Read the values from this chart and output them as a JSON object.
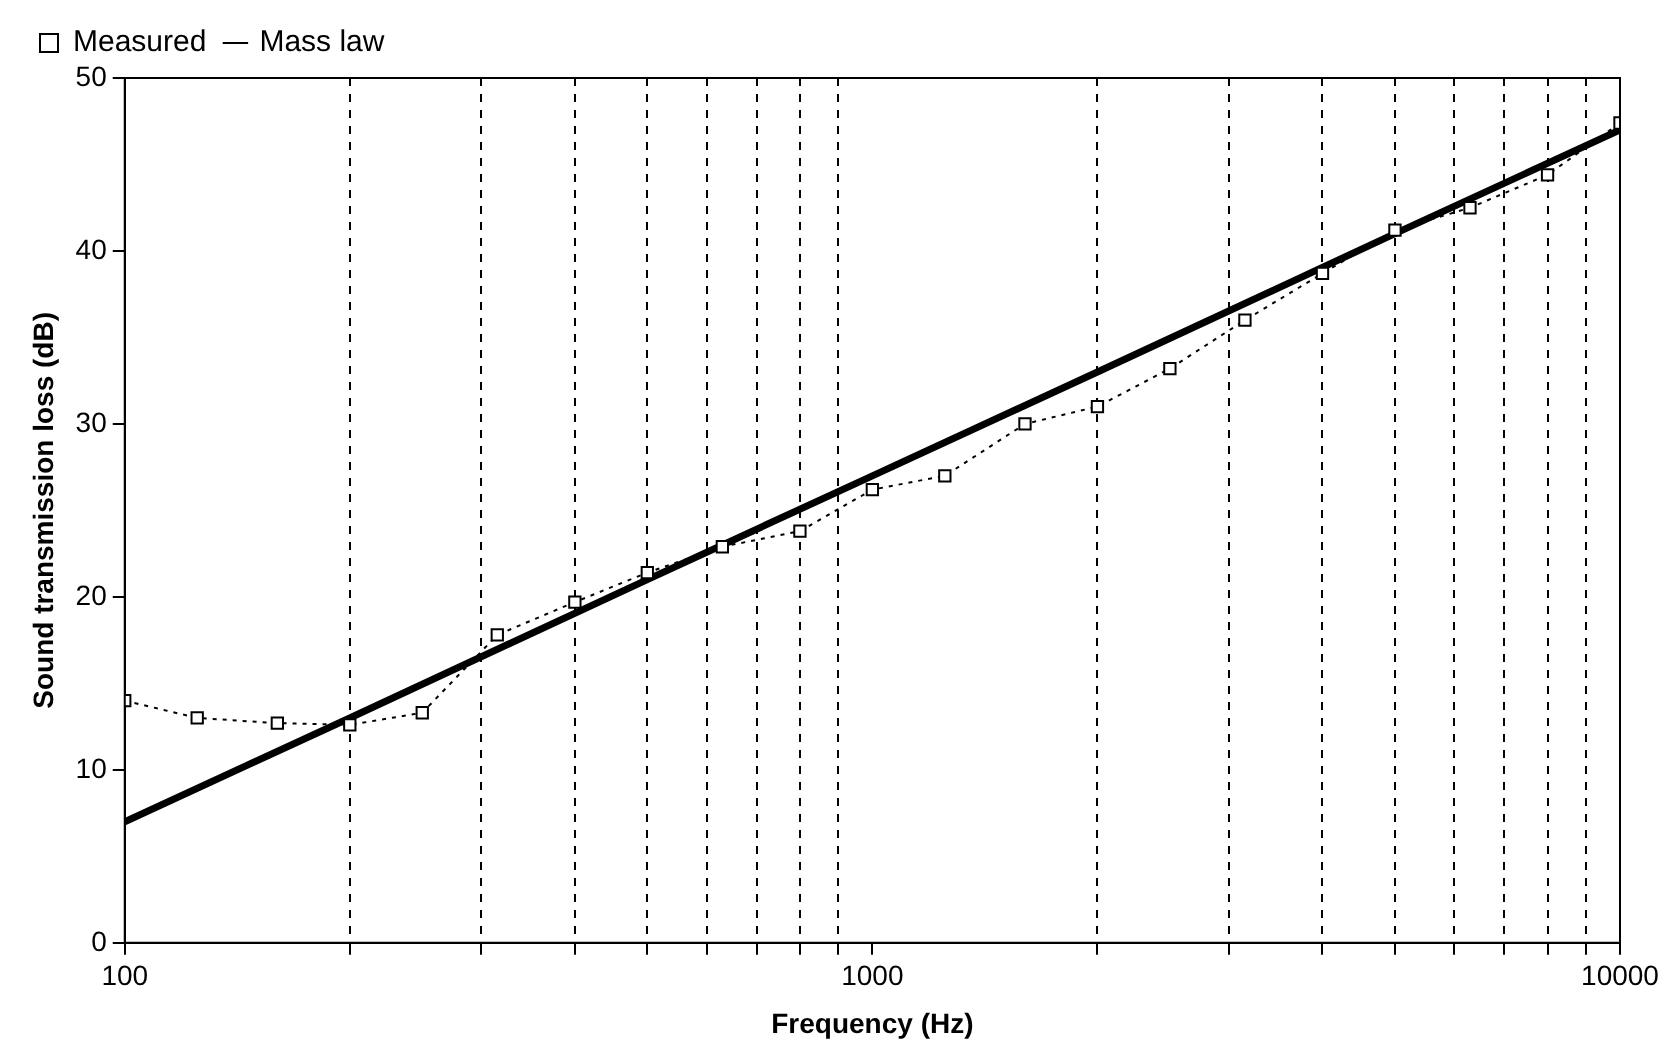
{
  "chart_data": {
    "type": "line",
    "xlabel": "Frequency (Hz)",
    "ylabel": "Sound transmission loss (dB)",
    "log": "x",
    "grid": "x",
    "legend": "top left",
    "xlim": [
      100,
      10000
    ],
    "xticks": [
      100,
      {
        "value": 200,
        "label": null
      },
      {
        "value": 300,
        "label": null
      },
      {
        "value": 400,
        "label": null
      },
      {
        "value": 500,
        "label": null
      },
      {
        "value": 600,
        "label": null
      },
      {
        "value": 700,
        "label": null
      },
      {
        "value": 800,
        "label": null
      },
      {
        "value": 900,
        "label": null
      },
      1000,
      {
        "value": 2000,
        "label": null
      },
      {
        "value": 3000,
        "label": null
      },
      {
        "value": 4000,
        "label": null
      },
      {
        "value": 5000,
        "label": null
      },
      {
        "value": 6000,
        "label": null
      },
      {
        "value": 7000,
        "label": null
      },
      {
        "value": 8000,
        "label": null
      },
      {
        "value": 9000,
        "label": null
      },
      10000
    ],
    "ylim": [
      0,
      50
    ],
    "yticks": [
      0,
      10,
      20,
      30,
      40,
      50
    ],
    "series": [
      {
        "name": "Measured",
        "color": "#000000",
        "marker": "square",
        "line_style": "dotted",
        "x": [
          100,
          125,
          160,
          200,
          250,
          315,
          400,
          500,
          630,
          800,
          1000,
          1250,
          1600,
          2000,
          2500,
          3150,
          4000,
          5000,
          6300,
          8000,
          10000
        ],
        "values": [
          14,
          13,
          12.7,
          12.6,
          13.3,
          17.8,
          19.7,
          21.4,
          22.9,
          23.8,
          26.2,
          27,
          30,
          31,
          33.2,
          36,
          38.7,
          41.2,
          42.5,
          44.4,
          47.4
        ]
      },
      {
        "name": "Mass law",
        "color": "#000000",
        "marker": "none",
        "line_style": "solid",
        "x": [
          100,
          200,
          500,
          1000,
          2000,
          5000,
          10000
        ],
        "values": [
          7,
          13,
          21,
          27,
          33,
          41,
          47
        ]
      }
    ]
  }
}
